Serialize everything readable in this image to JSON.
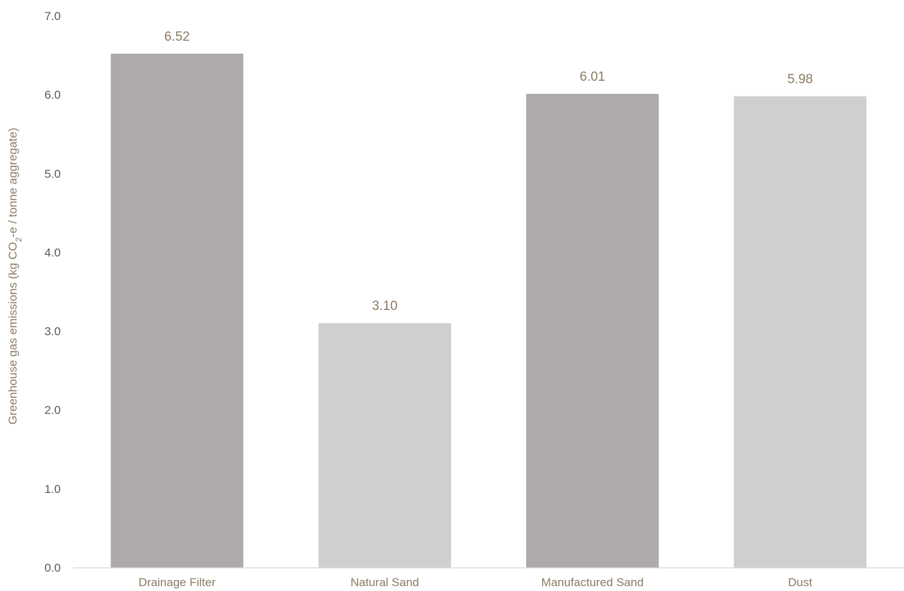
{
  "chart_data": {
    "type": "bar",
    "title": "",
    "xlabel": "",
    "ylabel": {
      "before": "Greenhouse gas emissions (kg CO",
      "subscript": "2",
      "after": "-e / tonne aggregate)"
    },
    "categories": [
      "Drainage Filter",
      "Natural Sand",
      "Manufactured Sand",
      "Dust"
    ],
    "values": [
      6.52,
      3.1,
      6.01,
      5.98
    ],
    "data_labels": [
      "6.52",
      "3.10",
      "6.01",
      "5.98"
    ],
    "ylim": [
      0,
      7
    ],
    "yticks": [
      0,
      1,
      2,
      3,
      4,
      5,
      6,
      7
    ],
    "ytick_labels": [
      "0.0",
      "1.0",
      "2.0",
      "3.0",
      "4.0",
      "5.0",
      "6.0",
      "7.0"
    ],
    "grid": false,
    "legend": "none",
    "bar_colors": [
      "#aeaaa9",
      "#d0cecf",
      "#aeaaa9",
      "#d0cecf"
    ],
    "colors": {
      "tick_text": "#595959",
      "category_text": "#8b7a64",
      "data_label_text": "#8b7a64",
      "axis_title_text": "#8b7a64",
      "axis_line": "#d9d9d9"
    }
  }
}
